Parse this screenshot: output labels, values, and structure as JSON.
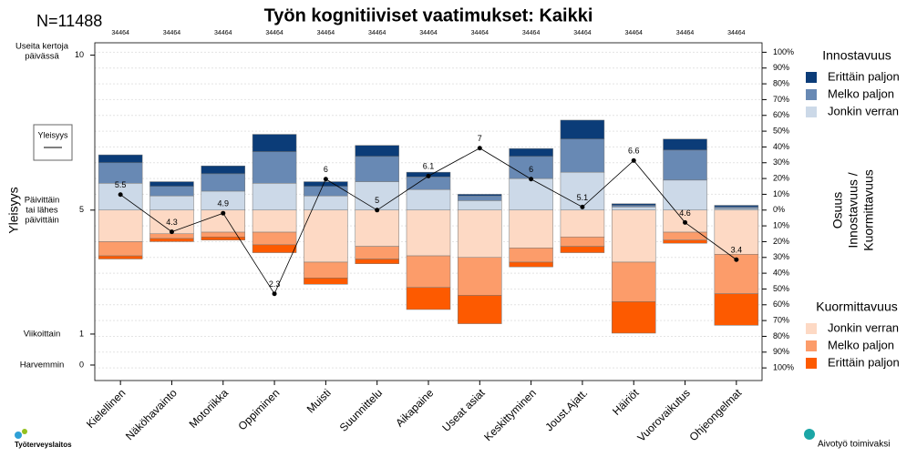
{
  "chart_data": {
    "type": "diverging_stacked_bar_line",
    "title": "Työn kognitiiviset vaatimukset: Kaikki",
    "n_label": "N=11488",
    "categories": [
      "Kielellinen",
      "Näköhavainto",
      "Motoriikka",
      "Oppiminen",
      "Muisti",
      "Suunnittelu",
      "Aikapaine",
      "Useat asiat",
      "Keskittyminen",
      "Joust.Ajatt.",
      "Häiriöt",
      "Vuorovaikutus",
      "Ohjeongelmat"
    ],
    "counts": [
      34464,
      34464,
      34464,
      34464,
      34464,
      34464,
      34464,
      34464,
      34464,
      34464,
      34464,
      34464,
      34464
    ],
    "y_label": "Yleisyys",
    "ylim": [
      -0.5,
      10.4
    ],
    "yticks": [
      0,
      1,
      5,
      10
    ],
    "ytick_names": [
      [
        "Harvemmin"
      ],
      [
        "Viikoittain"
      ],
      [
        "Päivittäin",
        "tai lähes",
        "päivittäin"
      ],
      [
        "Useita kertoja",
        "päivässä"
      ]
    ],
    "y2_label": [
      "Osuus",
      "Innostavuus /",
      "Kuormittavuus"
    ],
    "y2lim": [
      -108,
      106
    ],
    "y2ticks": [
      {
        "value": -100,
        "label": "100%"
      },
      {
        "value": -90,
        "label": "90%"
      },
      {
        "value": -80,
        "label": "80%"
      },
      {
        "value": -70,
        "label": "70%"
      },
      {
        "value": -60,
        "label": "60%"
      },
      {
        "value": -50,
        "label": "50%"
      },
      {
        "value": -40,
        "label": "40%"
      },
      {
        "value": -30,
        "label": "30%"
      },
      {
        "value": -20,
        "label": "20%"
      },
      {
        "value": -10,
        "label": "10%"
      },
      {
        "value": 0,
        "label": "0%"
      },
      {
        "value": 10,
        "label": "10%"
      },
      {
        "value": 20,
        "label": "20%"
      },
      {
        "value": 30,
        "label": "30%"
      },
      {
        "value": 40,
        "label": "40%"
      },
      {
        "value": 50,
        "label": "50%"
      },
      {
        "value": 60,
        "label": "60%"
      },
      {
        "value": 70,
        "label": "70%"
      },
      {
        "value": 80,
        "label": "80%"
      },
      {
        "value": 90,
        "label": "90%"
      },
      {
        "value": 100,
        "label": "100%"
      }
    ],
    "grid": true,
    "innostavuus": {
      "title": "Innostavuus",
      "direction": "up",
      "series": [
        {
          "name": "Jonkin verran",
          "color": "#ccd9e8",
          "axis": "y2",
          "values": [
            17,
            9,
            12,
            17,
            9,
            18,
            13,
            6,
            20,
            24,
            2,
            19,
            1
          ]
        },
        {
          "name": "Melko paljon",
          "color": "#6889b4",
          "axis": "y2",
          "values": [
            13,
            6,
            11,
            20,
            6,
            16,
            8,
            3,
            14,
            21,
            1,
            19,
            1
          ]
        },
        {
          "name": "Erittäin paljon",
          "color": "#0b3c78",
          "axis": "y2",
          "values": [
            5,
            3,
            5,
            11,
            3,
            7,
            3,
            1,
            5,
            12,
            1,
            7,
            1
          ]
        }
      ]
    },
    "kuormittavuus": {
      "title": "Kuormittavuus",
      "direction": "down",
      "series": [
        {
          "name": "Jonkin verran",
          "color": "#fdd9c4",
          "axis": "y2",
          "values": [
            20,
            15,
            14,
            14,
            33,
            23,
            29,
            30,
            24,
            17,
            33,
            14,
            28
          ]
        },
        {
          "name": "Melko paljon",
          "color": "#fc9c6a",
          "axis": "y2",
          "values": [
            9,
            3,
            3,
            8,
            10,
            8,
            20,
            24,
            9,
            6,
            25,
            5,
            25
          ]
        },
        {
          "name": "Erittäin paljon",
          "color": "#fd5a00",
          "axis": "y2",
          "values": [
            2,
            2,
            2,
            5,
            4,
            3,
            14,
            18,
            3,
            4,
            20,
            2,
            20
          ]
        }
      ]
    },
    "line": {
      "name": "Yleisyys",
      "color": "#000000",
      "values": [
        5.5,
        4.3,
        4.9,
        2.3,
        6,
        5,
        6.1,
        7,
        6,
        5.1,
        6.6,
        4.6,
        3.4
      ]
    },
    "logos": [
      "Työterveyslaitos",
      "Aivotyö toimivaksi"
    ]
  }
}
